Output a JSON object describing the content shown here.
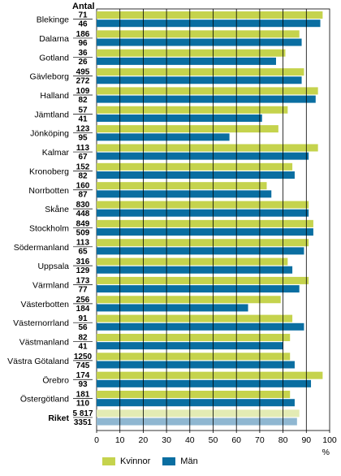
{
  "chart_data": {
    "type": "bar",
    "orientation": "horizontal",
    "count_header": "Antal",
    "xlabel": "%",
    "xlim": [
      0,
      100
    ],
    "xticks": [
      0,
      10,
      20,
      30,
      40,
      50,
      60,
      70,
      80,
      90,
      100
    ],
    "grid": true,
    "legend_position": "bottom",
    "categories": [
      "Blekinge",
      "Dalarna",
      "Gotland",
      "Gävleborg",
      "Halland",
      "Jämtland",
      "Jönköping",
      "Kalmar",
      "Kronoberg",
      "Norrbotten",
      "Skåne",
      "Stockholm",
      "Södermanland",
      "Uppsala",
      "Värmland",
      "Västerbotten",
      "Västernorrland",
      "Västmanland",
      "Västra Götaland",
      "Örebro",
      "Östergötland",
      "Riket"
    ],
    "counts_kvinnor": [
      "71",
      "186",
      "36",
      "495",
      "109",
      "57",
      "123",
      "113",
      "152",
      "160",
      "830",
      "849",
      "113",
      "316",
      "173",
      "256",
      "91",
      "82",
      "1250",
      "174",
      "181",
      "5 817"
    ],
    "counts_man": [
      "46",
      "96",
      "26",
      "272",
      "82",
      "41",
      "95",
      "67",
      "82",
      "87",
      "448",
      "509",
      "65",
      "129",
      "77",
      "184",
      "56",
      "41",
      "745",
      "93",
      "110",
      "3351"
    ],
    "series": [
      {
        "name": "Kvinnor",
        "color": "#c5d34d",
        "highlight_color": "#e3ebb4",
        "values": [
          97,
          87,
          81,
          89,
          95,
          82,
          78,
          95,
          84,
          73,
          91,
          93,
          91,
          82,
          91,
          79,
          84,
          83,
          83,
          97,
          83,
          87
        ]
      },
      {
        "name": "Män",
        "color": "#0a6ea1",
        "highlight_color": "#8fb7d1",
        "values": [
          96,
          88,
          77,
          88,
          94,
          71,
          57,
          91,
          85,
          75,
          91,
          93,
          89,
          84,
          87,
          65,
          89,
          80,
          85,
          92,
          85,
          86
        ]
      }
    ]
  }
}
